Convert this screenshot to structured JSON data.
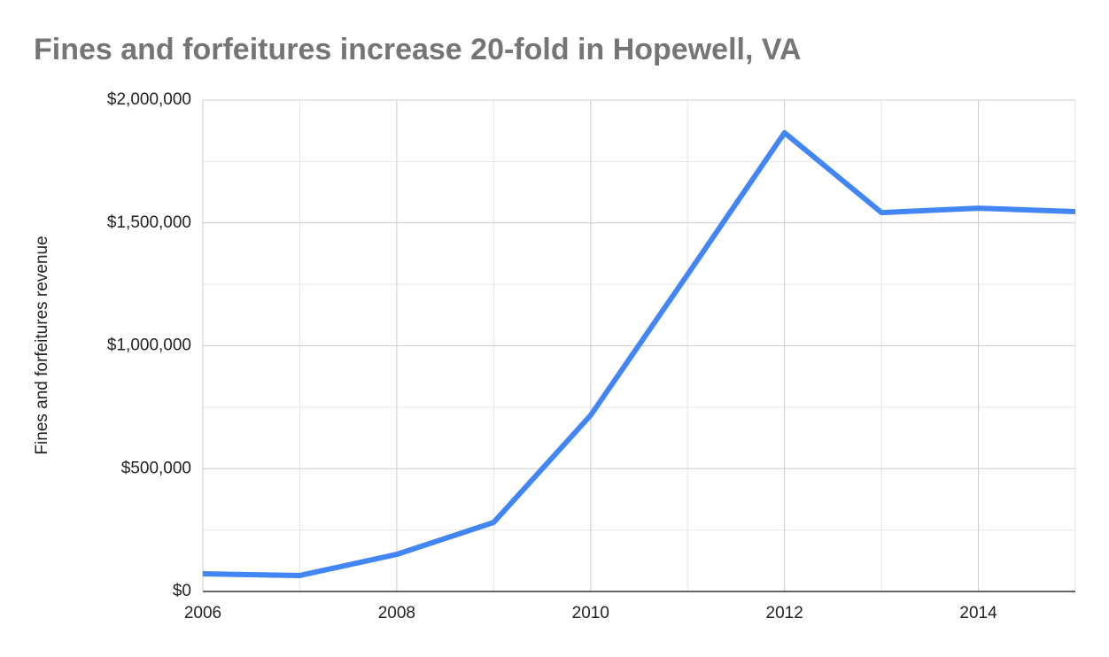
{
  "chart_data": {
    "type": "line",
    "title": "Fines and forfeitures increase 20-fold in Hopewell, VA",
    "y_label": "Fines and forfeitures revenue",
    "x": [
      2006,
      2007,
      2008,
      2009,
      2010,
      2011,
      2012,
      2013,
      2014,
      2015
    ],
    "series": [
      {
        "name": "Fines and forfeitures revenue",
        "color": "#4285f4",
        "values": [
          72000,
          65000,
          151000,
          281000,
          717000,
          1290000,
          1867000,
          1542000,
          1560000,
          1546000
        ]
      }
    ],
    "xlim": [
      2006,
      2015
    ],
    "xticks": [
      2006,
      2008,
      2010,
      2012,
      2014
    ],
    "x_minor_ticks": [
      2007,
      2009,
      2011,
      2013,
      2015
    ],
    "ylim": [
      0,
      2000000
    ],
    "yticks": [
      {
        "value": 0,
        "label": "$0"
      },
      {
        "value": 500000,
        "label": "$500,000"
      },
      {
        "value": 1000000,
        "label": "$1,000,000"
      },
      {
        "value": 1500000,
        "label": "$1,500,000"
      },
      {
        "value": 2000000,
        "label": "$2,000,000"
      }
    ],
    "y_minor_ticks": [
      250000,
      750000,
      1250000,
      1750000
    ],
    "grid": true
  }
}
